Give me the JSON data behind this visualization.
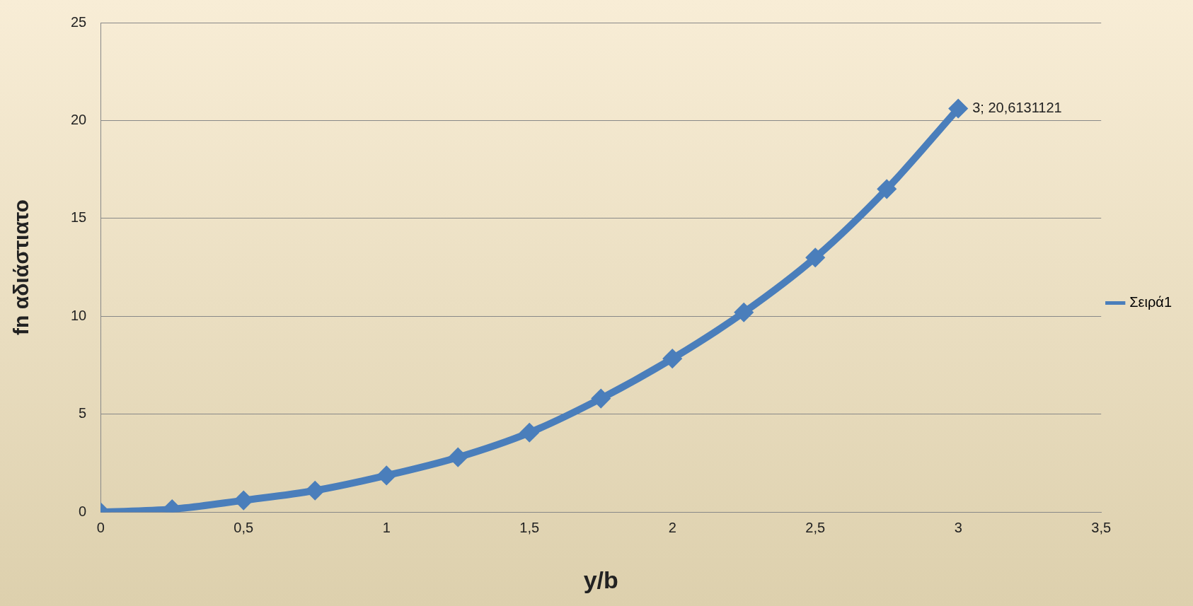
{
  "chart_data": {
    "type": "line",
    "xlabel": "y/b",
    "ylabel": "fn αδιάστιατο",
    "x": [
      0,
      0.25,
      0.5,
      0.75,
      1,
      1.25,
      1.5,
      1.75,
      2,
      2.25,
      2.5,
      2.75,
      3
    ],
    "series": [
      {
        "name": "Σειρά1",
        "color": "#4a7ebb",
        "values": [
          0,
          0.15,
          0.6,
          1.1,
          1.87,
          2.8,
          4.06,
          5.8,
          7.84,
          10.2,
          13.0,
          16.5,
          20.6131121
        ],
        "value_labels": [
          null,
          null,
          null,
          null,
          null,
          null,
          null,
          null,
          null,
          null,
          null,
          null,
          "3; 20,6131121"
        ]
      }
    ],
    "xlim": [
      0,
      3.5
    ],
    "xticks": [
      0,
      {
        "value": 0.5,
        "label": "0,5"
      },
      1,
      {
        "value": 1.5,
        "label": "1,5"
      },
      2,
      {
        "value": 2.5,
        "label": "2,5"
      },
      3,
      {
        "value": 3.5,
        "label": "3,5"
      }
    ],
    "ylim": [
      0,
      25
    ],
    "yticks": [
      0,
      5,
      10,
      15,
      20,
      25
    ],
    "grid": "y",
    "legend": "right",
    "marker": "diamond",
    "line_style": "solid"
  }
}
